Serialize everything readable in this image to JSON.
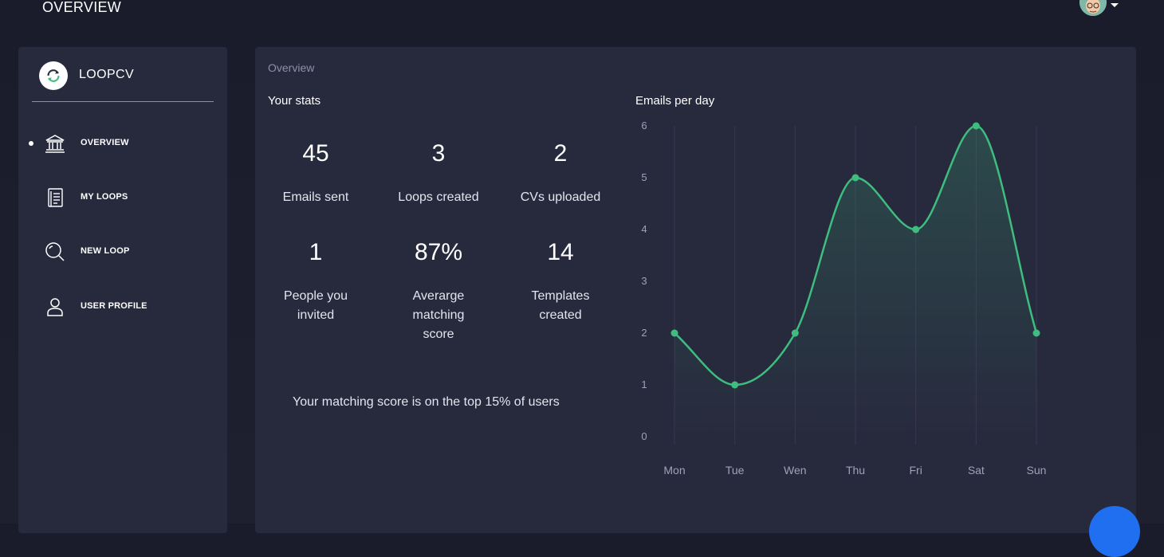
{
  "header": {
    "title": "OVERVIEW"
  },
  "brand": {
    "name": "LOOPCV"
  },
  "sidebar": {
    "items": [
      {
        "label": "OVERVIEW",
        "icon": "bank-icon",
        "active": true
      },
      {
        "label": "MY LOOPS",
        "icon": "document-icon",
        "active": false
      },
      {
        "label": "NEW LOOP",
        "icon": "search-icon",
        "active": false
      },
      {
        "label": "USER PROFILE",
        "icon": "user-icon",
        "active": false
      }
    ]
  },
  "main": {
    "breadcrumb": "Overview",
    "stats_title": "Your stats",
    "stats": [
      {
        "value": "45",
        "label": "Emails sent"
      },
      {
        "value": "3",
        "label": "Loops created"
      },
      {
        "value": "2",
        "label": "CVs uploaded"
      },
      {
        "value": "1",
        "label": "People you invited"
      },
      {
        "value": "87%",
        "label": "Averarge matching score"
      },
      {
        "value": "14",
        "label": "Templates created"
      }
    ],
    "matching_note": "Your matching score is on the top 15% of users"
  },
  "chart_data": {
    "type": "line",
    "title": "Emails per day",
    "categories": [
      "Mon",
      "Tue",
      "Wen",
      "Thu",
      "Fri",
      "Sat",
      "Sun"
    ],
    "values": [
      2,
      1,
      2,
      5,
      4,
      6,
      2
    ],
    "ylim": [
      0,
      6
    ],
    "yticks": [
      0,
      1,
      2,
      3,
      4,
      5,
      6
    ],
    "grid": "vertical",
    "color": "#3ebd7f"
  },
  "colors": {
    "accent": "#3ebd7f",
    "panel": "#272a3d",
    "fab": "#1f6ff0"
  }
}
